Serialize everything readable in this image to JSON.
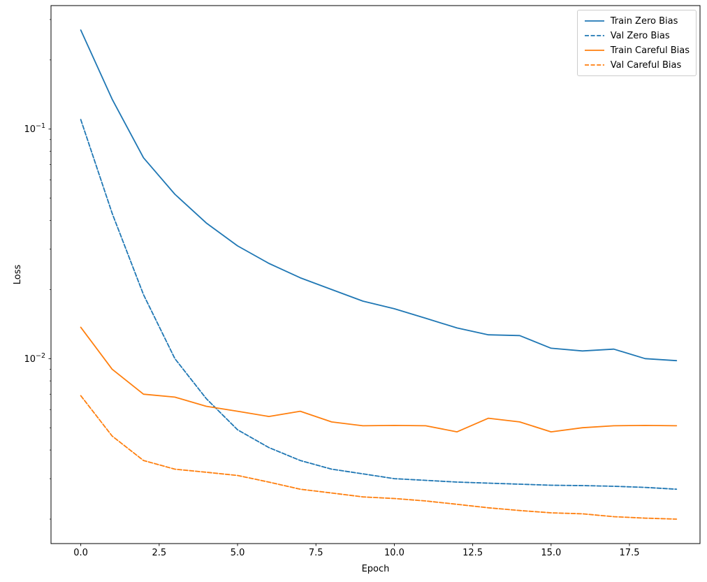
{
  "chart_data": {
    "type": "line",
    "title": "",
    "xlabel": "Epoch",
    "ylabel": "Loss",
    "xscale": "linear",
    "yscale": "log",
    "grid": false,
    "legend_position": "upper right",
    "xlim": [
      -0.95,
      19.75
    ],
    "ylim": [
      0.001565,
      0.345
    ],
    "x_ticks": {
      "values": [
        0,
        2.5,
        5,
        7.5,
        10,
        12.5,
        15,
        17.5
      ],
      "labels": [
        "0.0",
        "2.5",
        "5.0",
        "7.5",
        "10.0",
        "12.5",
        "15.0",
        "17.5"
      ]
    },
    "y_ticks": {
      "values": [
        0.1,
        0.01
      ],
      "labels": [
        {
          "base": "10",
          "exponent": "−1"
        },
        {
          "base": "10",
          "exponent": "−2"
        }
      ]
    },
    "x": [
      0,
      1,
      2,
      3,
      4,
      5,
      6,
      7,
      8,
      9,
      10,
      11,
      12,
      13,
      14,
      15,
      16,
      17,
      18,
      19
    ],
    "series": [
      {
        "name": "Train Zero Bias",
        "color": "#1f77b4",
        "line_style": "solid",
        "values": [
          0.27,
          0.135,
          0.075,
          0.052,
          0.039,
          0.031,
          0.026,
          0.0225,
          0.02,
          0.0178,
          0.0165,
          0.015,
          0.0136,
          0.0127,
          0.0126,
          0.0111,
          0.0108,
          0.011,
          0.01,
          0.0098
        ]
      },
      {
        "name": "Val Zero Bias",
        "color": "#1f77b4",
        "line_style": "dashed",
        "values": [
          0.11,
          0.043,
          0.019,
          0.01,
          0.0067,
          0.0049,
          0.0041,
          0.0036,
          0.0033,
          0.00315,
          0.003,
          0.00295,
          0.0029,
          0.00287,
          0.00284,
          0.00281,
          0.0028,
          0.00278,
          0.00275,
          0.0027
        ]
      },
      {
        "name": "Train Careful Bias",
        "color": "#ff7f0e",
        "line_style": "solid",
        "values": [
          0.0137,
          0.009,
          0.007,
          0.0068,
          0.0062,
          0.0059,
          0.0056,
          0.0059,
          0.0053,
          0.0051,
          0.00512,
          0.0051,
          0.0048,
          0.0055,
          0.0053,
          0.0048,
          0.005,
          0.0051,
          0.00512,
          0.0051
        ]
      },
      {
        "name": "Val Careful Bias",
        "color": "#ff7f0e",
        "line_style": "dashed",
        "values": [
          0.0069,
          0.0046,
          0.0036,
          0.0033,
          0.0032,
          0.0031,
          0.0029,
          0.0027,
          0.0026,
          0.0025,
          0.00246,
          0.0024,
          0.00232,
          0.00224,
          0.00218,
          0.00213,
          0.00211,
          0.00205,
          0.00202,
          0.002
        ]
      }
    ]
  }
}
